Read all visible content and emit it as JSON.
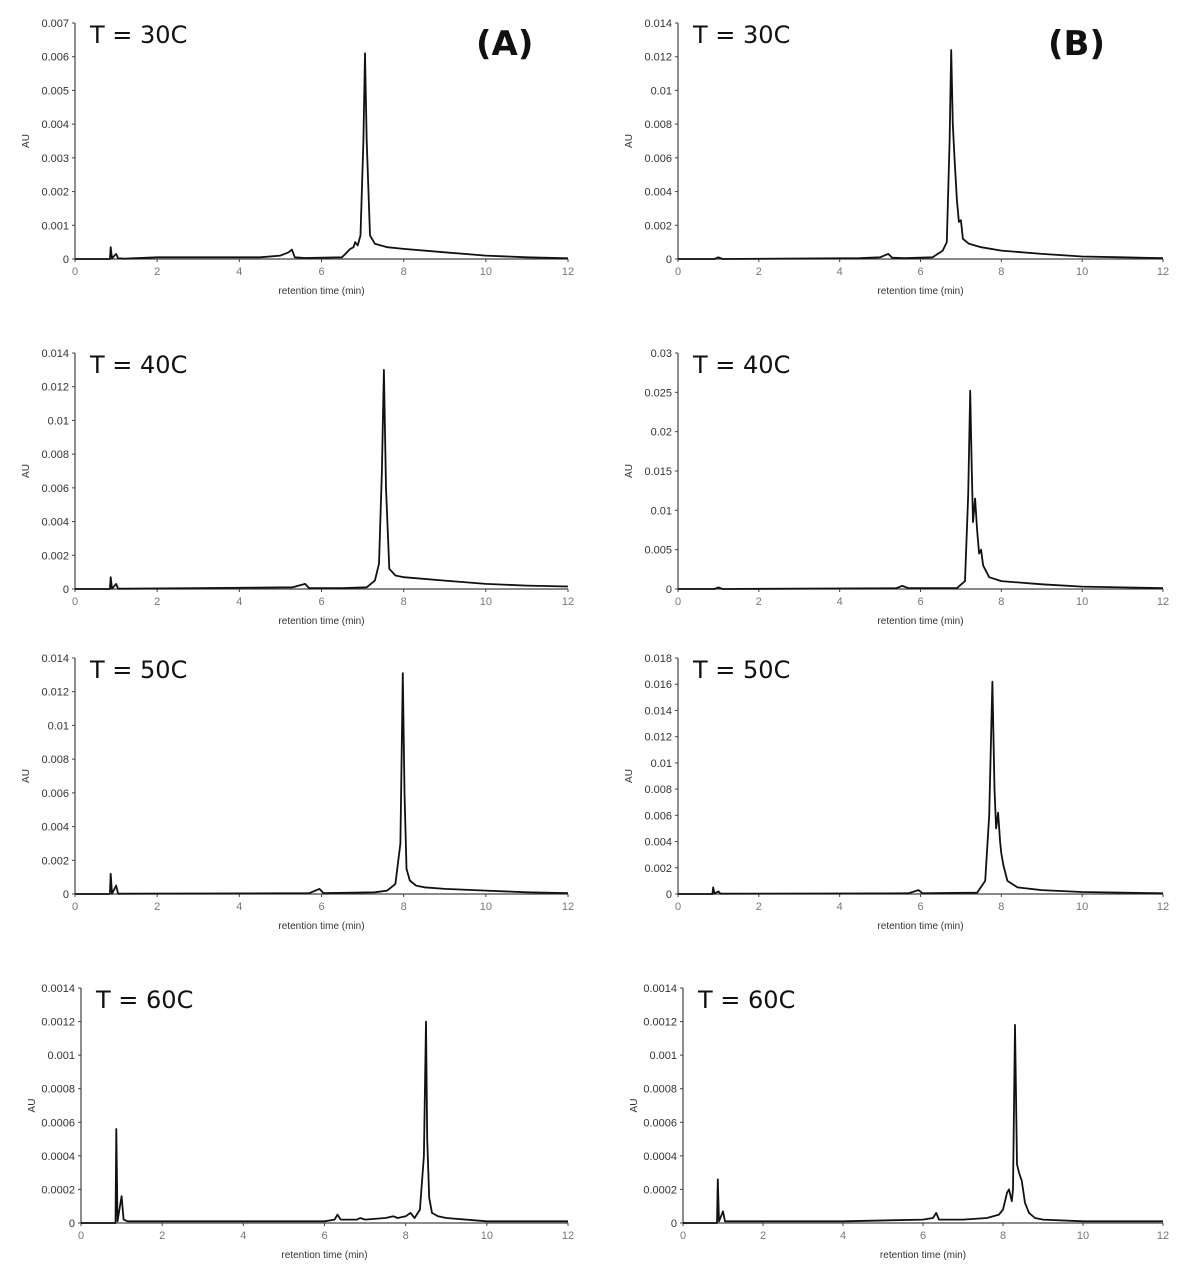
{
  "figure": {
    "panel_labels": [
      "(A)",
      "(B)"
    ],
    "x_label": "retention time (min)",
    "y_label": "AU",
    "x_ticks": [
      "0",
      "2",
      "4",
      "6",
      "8",
      "10",
      "12"
    ]
  },
  "chart_data": [
    {
      "type": "line",
      "panel": "A",
      "title": "T = 30C",
      "xlabel": "retention time (min)",
      "ylabel": "AU",
      "xlim": [
        0,
        12
      ],
      "ylim": [
        0,
        0.007
      ],
      "y_ticks": [
        "0",
        "0.001",
        "0.002",
        "0.003",
        "0.004",
        "0.005",
        "0.006",
        "0.007"
      ],
      "x": [
        0,
        0.85,
        0.87,
        0.9,
        1.0,
        1.05,
        1.2,
        2.0,
        3.0,
        4.5,
        5.0,
        5.2,
        5.28,
        5.35,
        5.6,
        6.5,
        6.7,
        6.78,
        6.82,
        6.88,
        6.95,
        7.02,
        7.06,
        7.1,
        7.18,
        7.3,
        7.6,
        8.0,
        9.0,
        10.0,
        11.0,
        12.0
      ],
      "y": [
        0,
        0,
        0.00035,
        2e-05,
        0.00015,
        2e-05,
        1e-05,
        5e-05,
        5e-05,
        5e-05,
        0.0001,
        0.0002,
        0.00028,
        5e-05,
        3e-05,
        5e-05,
        0.0003,
        0.00035,
        0.0005,
        0.0004,
        0.0007,
        0.0035,
        0.0061,
        0.0035,
        0.0007,
        0.00045,
        0.00035,
        0.0003,
        0.0002,
        0.0001,
        5e-05,
        2e-05
      ]
    },
    {
      "type": "line",
      "panel": "B",
      "title": "T = 30C",
      "xlabel": "retention time (min)",
      "ylabel": "AU",
      "xlim": [
        0,
        12
      ],
      "ylim": [
        0,
        0.014
      ],
      "y_ticks": [
        "0",
        "0.002",
        "0.004",
        "0.006",
        "0.008",
        "0.01",
        "0.012",
        "0.014"
      ],
      "x": [
        0,
        0.9,
        1.0,
        1.1,
        4.5,
        5.0,
        5.2,
        5.3,
        5.6,
        6.3,
        6.55,
        6.65,
        6.72,
        6.76,
        6.8,
        6.84,
        6.9,
        6.95,
        7.0,
        7.05,
        7.2,
        7.5,
        8.0,
        9.0,
        10.0,
        11.0,
        12.0
      ],
      "y": [
        0,
        0,
        0.0001,
        0,
        5e-05,
        0.0001,
        0.0003,
        8e-05,
        5e-05,
        0.0001,
        0.0005,
        0.001,
        0.007,
        0.0124,
        0.008,
        0.006,
        0.0035,
        0.0022,
        0.0023,
        0.0012,
        0.0009,
        0.0007,
        0.0005,
        0.0003,
        0.00015,
        0.0001,
        5e-05
      ]
    },
    {
      "type": "line",
      "panel": "A",
      "title": "T = 40C",
      "xlabel": "retention time (min)",
      "ylabel": "AU",
      "xlim": [
        0,
        12
      ],
      "ylim": [
        0,
        0.014
      ],
      "y_ticks": [
        "0",
        "0.002",
        "0.004",
        "0.006",
        "0.008",
        "0.01",
        "0.012",
        "0.014"
      ],
      "x": [
        0,
        0.85,
        0.87,
        0.9,
        1.0,
        1.05,
        1.2,
        3.0,
        5.3,
        5.6,
        5.7,
        6.5,
        7.1,
        7.3,
        7.4,
        7.47,
        7.52,
        7.57,
        7.65,
        7.8,
        8.0,
        9.0,
        10.0,
        11.0,
        12.0
      ],
      "y": [
        0,
        0,
        0.0007,
        2e-05,
        0.0003,
        2e-05,
        2e-05,
        5e-05,
        0.0001,
        0.0003,
        5e-05,
        5e-05,
        0.0001,
        0.0005,
        0.0015,
        0.007,
        0.013,
        0.006,
        0.0012,
        0.0008,
        0.0007,
        0.0005,
        0.0003,
        0.0002,
        0.00015
      ]
    },
    {
      "type": "line",
      "panel": "B",
      "title": "T = 40C",
      "xlabel": "retention time (min)",
      "ylabel": "AU",
      "xlim": [
        0,
        12
      ],
      "ylim": [
        0,
        0.03
      ],
      "y_ticks": [
        "0",
        "0.005",
        "0.01",
        "0.015",
        "0.02",
        "0.025",
        "0.03"
      ],
      "x": [
        0,
        0.9,
        1.0,
        1.1,
        5.4,
        5.55,
        5.7,
        6.9,
        7.1,
        7.18,
        7.23,
        7.27,
        7.3,
        7.35,
        7.4,
        7.45,
        7.5,
        7.55,
        7.7,
        8.0,
        9.0,
        10.0,
        11.0,
        12.0
      ],
      "y": [
        0,
        0,
        0.0002,
        0,
        0.0001,
        0.0004,
        0.0001,
        0.0001,
        0.001,
        0.012,
        0.0252,
        0.015,
        0.0085,
        0.0115,
        0.0075,
        0.0045,
        0.005,
        0.003,
        0.0015,
        0.001,
        0.0006,
        0.0003,
        0.0002,
        0.0001
      ]
    },
    {
      "type": "line",
      "panel": "A",
      "title": "T = 50C",
      "xlabel": "retention time (min)",
      "ylabel": "AU",
      "xlim": [
        0,
        12
      ],
      "ylim": [
        0,
        0.014
      ],
      "y_ticks": [
        "0",
        "0.002",
        "0.004",
        "0.006",
        "0.008",
        "0.01",
        "0.012",
        "0.014"
      ],
      "x": [
        0,
        0.85,
        0.87,
        0.9,
        1.0,
        1.05,
        1.2,
        5.7,
        5.95,
        6.05,
        7.3,
        7.6,
        7.8,
        7.92,
        7.98,
        8.02,
        8.07,
        8.15,
        8.3,
        8.5,
        9.0,
        10.0,
        11.0,
        12.0
      ],
      "y": [
        0,
        0,
        0.0012,
        2e-05,
        0.0005,
        2e-05,
        2e-05,
        5e-05,
        0.0003,
        5e-05,
        0.0001,
        0.0002,
        0.0006,
        0.003,
        0.0131,
        0.006,
        0.0015,
        0.0008,
        0.0005,
        0.0004,
        0.0003,
        0.0002,
        0.0001,
        5e-05
      ]
    },
    {
      "type": "line",
      "panel": "B",
      "title": "T = 50C",
      "xlabel": "retention time (min)",
      "ylabel": "AU",
      "xlim": [
        0,
        12
      ],
      "ylim": [
        0,
        0.018
      ],
      "y_ticks": [
        "0",
        "0.002",
        "0.004",
        "0.006",
        "0.008",
        "0.01",
        "0.012",
        "0.014",
        "0.016",
        "0.018"
      ],
      "x": [
        0,
        0.85,
        0.87,
        0.9,
        1.0,
        1.05,
        5.7,
        5.95,
        6.05,
        7.4,
        7.6,
        7.7,
        7.78,
        7.83,
        7.87,
        7.92,
        7.97,
        8.0,
        8.05,
        8.15,
        8.4,
        9.0,
        10.0,
        11.0,
        12.0
      ],
      "y": [
        0,
        0,
        0.0005,
        2e-05,
        0.0002,
        2e-05,
        5e-05,
        0.0003,
        5e-05,
        0.0001,
        0.001,
        0.006,
        0.0162,
        0.008,
        0.005,
        0.0062,
        0.004,
        0.0031,
        0.0022,
        0.001,
        0.0005,
        0.0003,
        0.00015,
        0.0001,
        5e-05
      ]
    },
    {
      "type": "line",
      "panel": "A",
      "title": "T = 60C",
      "xlabel": "retention time (min)",
      "ylabel": "AU",
      "xlim": [
        0,
        12
      ],
      "ylim": [
        0,
        0.0014
      ],
      "y_ticks": [
        "0",
        "0.0002",
        "0.0004",
        "0.0006",
        "0.0008",
        "0.001",
        "0.0012",
        "0.0014"
      ],
      "x": [
        0,
        0.85,
        0.87,
        0.9,
        1.0,
        1.05,
        1.15,
        2.0,
        3.0,
        4.0,
        5.0,
        6.0,
        6.25,
        6.32,
        6.4,
        6.8,
        6.88,
        7.0,
        7.5,
        7.7,
        7.8,
        8.0,
        8.12,
        8.22,
        8.35,
        8.45,
        8.5,
        8.53,
        8.58,
        8.65,
        8.8,
        9.0,
        10.0,
        11.0,
        12.0
      ],
      "y": [
        0,
        0,
        0.00056,
        1e-05,
        0.00016,
        2e-05,
        1e-05,
        1e-05,
        1e-05,
        1e-05,
        1e-05,
        1e-05,
        2e-05,
        5e-05,
        2e-05,
        2e-05,
        3e-05,
        2e-05,
        3e-05,
        4e-05,
        3e-05,
        4e-05,
        6e-05,
        3e-05,
        8e-05,
        0.0004,
        0.0012,
        0.0005,
        0.00015,
        6e-05,
        4e-05,
        3e-05,
        1e-05,
        1e-05,
        1e-05
      ]
    },
    {
      "type": "line",
      "panel": "B",
      "title": "T = 60C",
      "xlabel": "retention time (min)",
      "ylabel": "AU",
      "xlim": [
        0,
        12
      ],
      "ylim": [
        0,
        0.0014
      ],
      "y_ticks": [
        "0",
        "0.0002",
        "0.0004",
        "0.0006",
        "0.0008",
        "0.001",
        "0.0012",
        "0.0014"
      ],
      "x": [
        0,
        0.85,
        0.87,
        0.9,
        1.0,
        1.05,
        1.15,
        2.0,
        4.0,
        6.0,
        6.25,
        6.33,
        6.4,
        7.0,
        7.6,
        7.9,
        8.0,
        8.1,
        8.15,
        8.22,
        8.25,
        8.3,
        8.35,
        8.4,
        8.47,
        8.55,
        8.65,
        8.8,
        9.0,
        10.0,
        11.0,
        12.0
      ],
      "y": [
        0,
        0,
        0.00026,
        1e-05,
        7e-05,
        1e-05,
        1e-05,
        1e-05,
        1e-05,
        2e-05,
        3e-05,
        6e-05,
        2e-05,
        2e-05,
        3e-05,
        5e-05,
        8e-05,
        0.00018,
        0.0002,
        0.00013,
        0.0002,
        0.00118,
        0.00035,
        0.0003,
        0.00025,
        0.00012,
        6e-05,
        3e-05,
        2e-05,
        1e-05,
        1e-05,
        1e-05
      ]
    }
  ]
}
